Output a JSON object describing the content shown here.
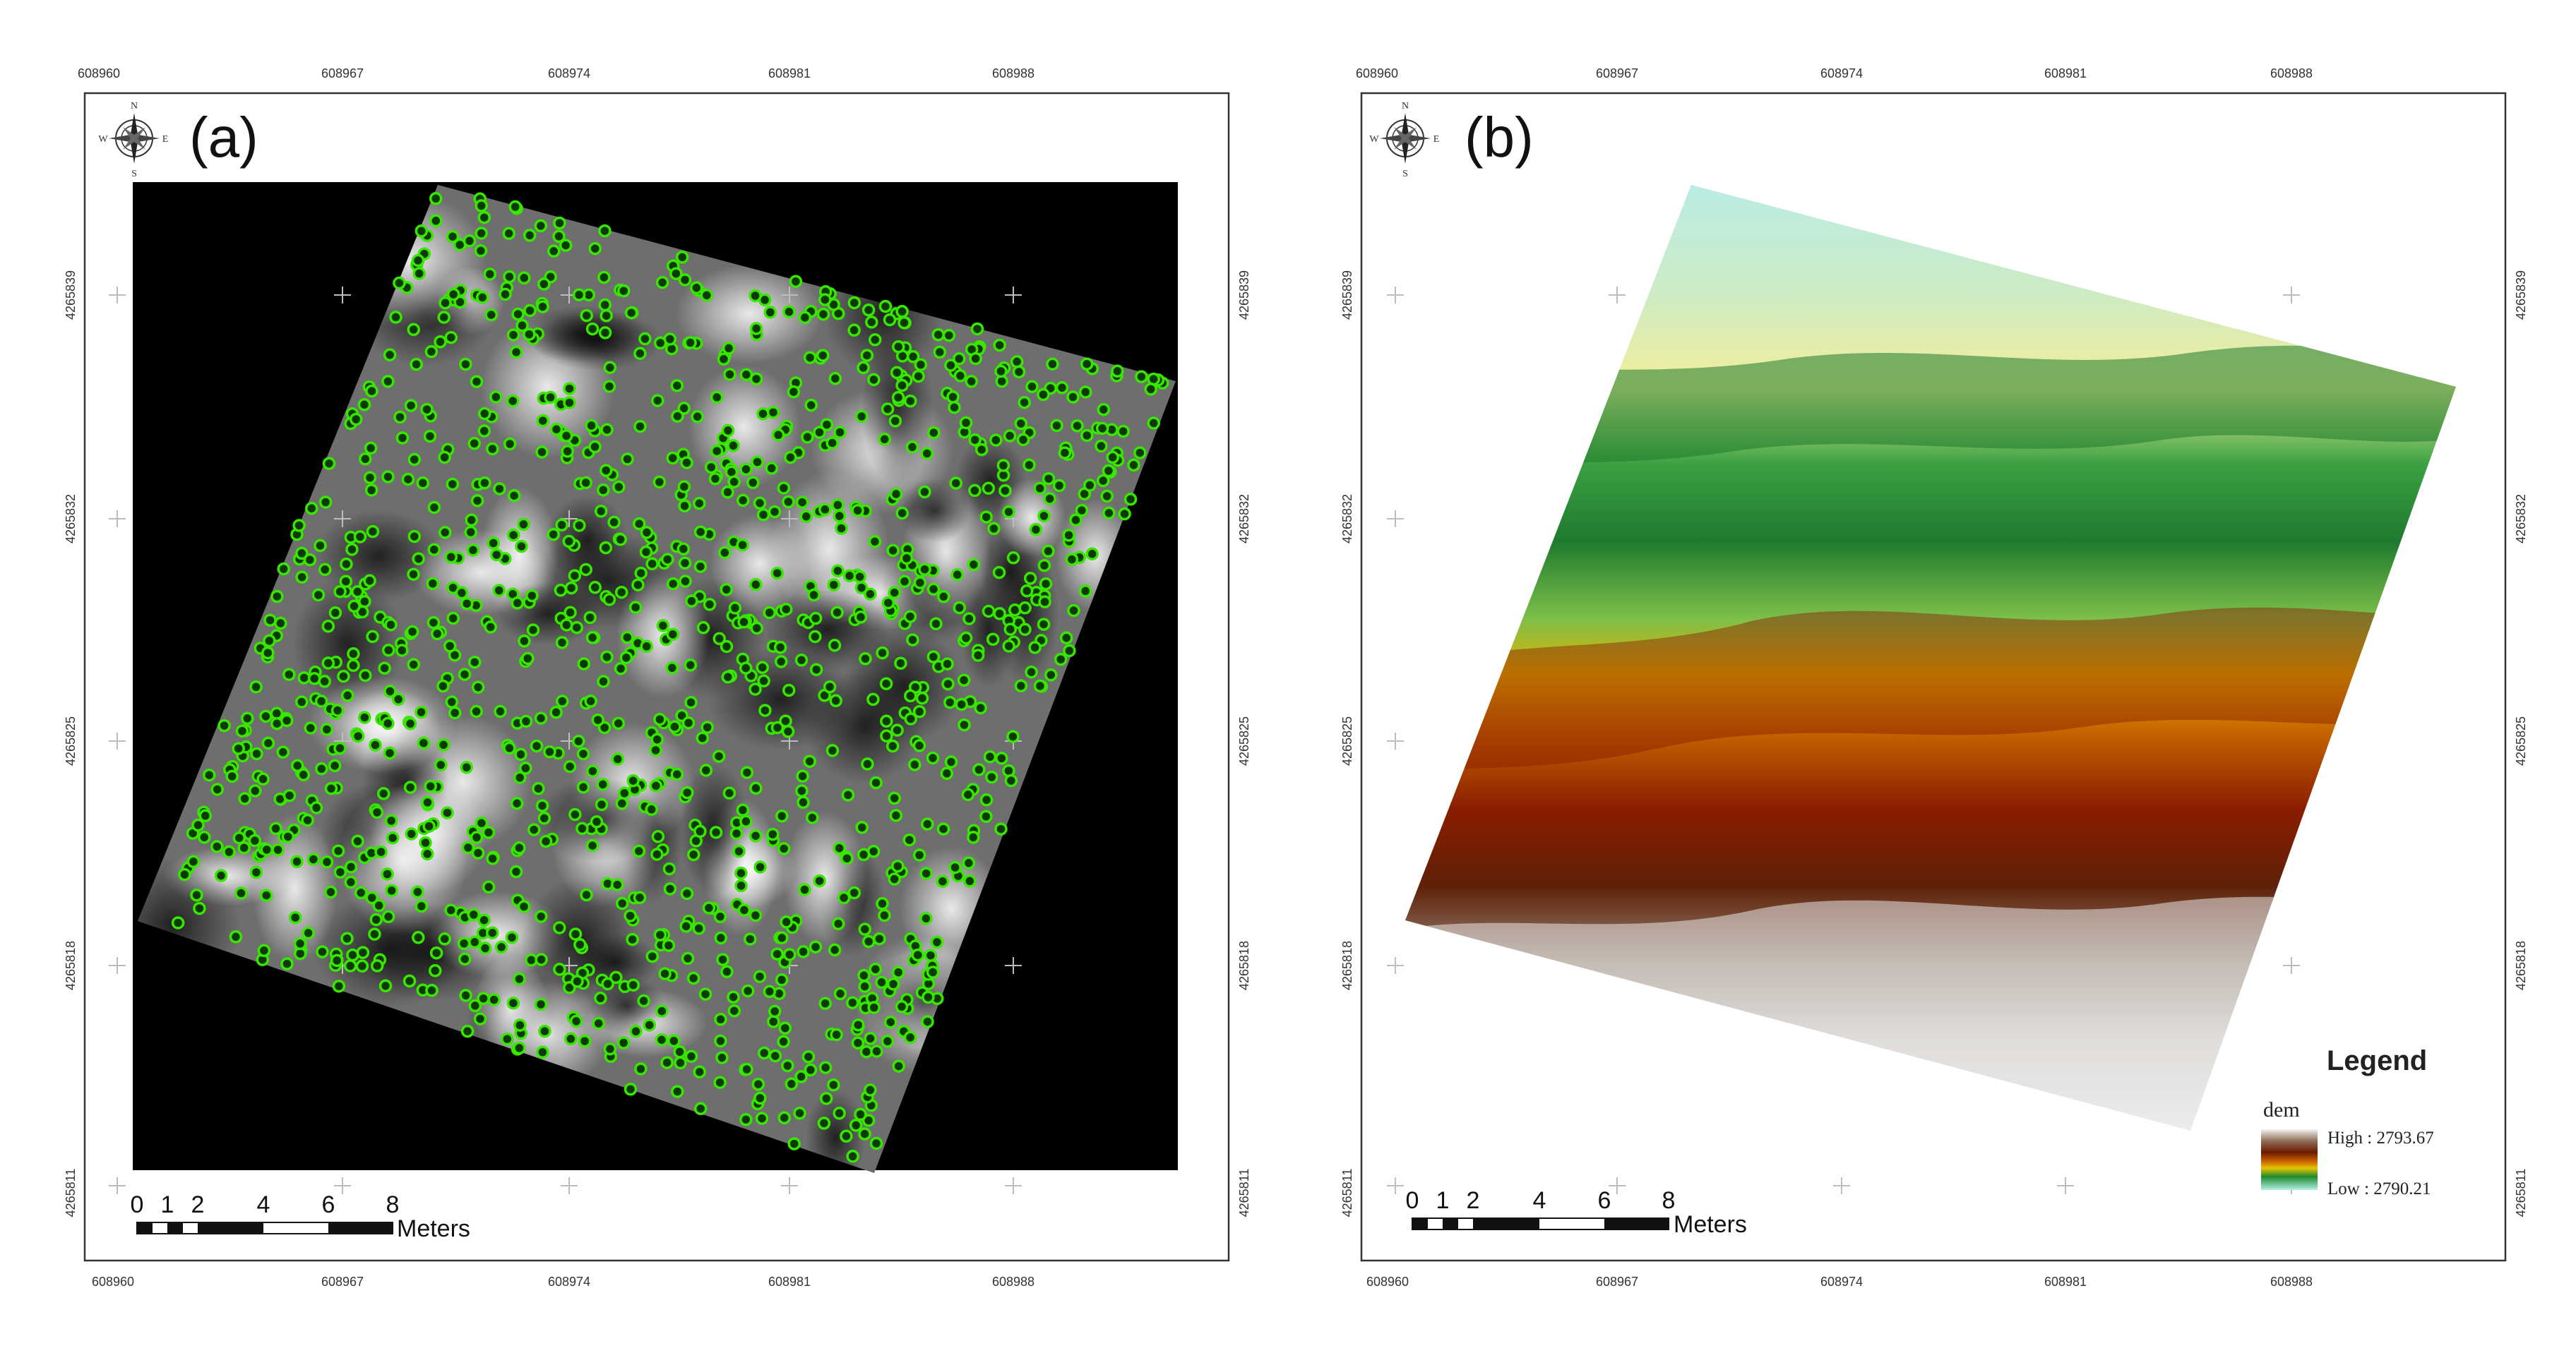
{
  "panels": [
    {
      "id": "a",
      "label": "(a)",
      "x_ticks": [
        "608960",
        "608967",
        "608974",
        "608981",
        "608988"
      ],
      "y_ticks": [
        "4265839",
        "4265832",
        "4265825",
        "4265818",
        "4265811"
      ],
      "compass": {
        "n": "N",
        "s": "S",
        "e": "E",
        "w": "W"
      },
      "scale_bar": {
        "numbers": [
          "0",
          "1",
          "2",
          "4",
          "6",
          "8"
        ],
        "unit": "Meters"
      },
      "layer": "grayscale raster with green detected-point markers"
    },
    {
      "id": "b",
      "label": "(b)",
      "x_ticks": [
        "608960",
        "608967",
        "608974",
        "608981",
        "608988"
      ],
      "y_ticks": [
        "4265839",
        "4265832",
        "4265825",
        "4265818",
        "4265811"
      ],
      "compass": {
        "n": "N",
        "s": "S",
        "e": "E",
        "w": "W"
      },
      "scale_bar": {
        "numbers": [
          "0",
          "1",
          "2",
          "4",
          "6",
          "8"
        ],
        "unit": "Meters"
      },
      "legend": {
        "title": "Legend",
        "field": "dem",
        "high": "High : 2793.67",
        "low": "Low : 2790.21"
      }
    }
  ],
  "colors": {
    "point_marker": "#39e600",
    "background_a": "#000000",
    "dem_ramp": [
      "#f3f3f3",
      "#bfb5ad",
      "#6e3a1e",
      "#8a1c00",
      "#c06000",
      "#e9b400",
      "#f2ee9a",
      "#2f9a3a",
      "#1f7a2e",
      "#8fdba3",
      "#b8ece6"
    ]
  }
}
